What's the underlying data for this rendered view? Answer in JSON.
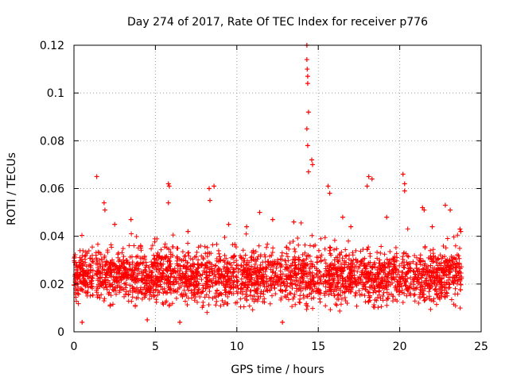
{
  "chart_data": {
    "type": "scatter",
    "title": "Day 274 of 2017, Rate Of TEC Index for receiver p776",
    "xlabel": "GPS time / hours",
    "ylabel": "ROTI / TECUs",
    "xlim": [
      0,
      25
    ],
    "ylim": [
      0,
      0.12
    ],
    "x_ticks": [
      0,
      5,
      10,
      15,
      20,
      25
    ],
    "x_tick_labels": [
      "0",
      "5",
      "10",
      "15",
      "20",
      "25"
    ],
    "y_ticks": [
      0,
      0.02,
      0.04,
      0.06,
      0.08,
      0.1,
      0.12
    ],
    "y_tick_labels": [
      "0",
      "0.02",
      "0.04",
      "0.06",
      "0.08",
      "0.1",
      "0.12"
    ],
    "grid": true,
    "marker": "+",
    "series": [
      {
        "name": "ROTI",
        "color": "#ff0000",
        "x_range": [
          0,
          23.8
        ],
        "typical_band": [
          0.007,
          0.035
        ],
        "x": [
          1.4,
          1.85,
          1.9,
          5.8,
          5.85,
          5.8,
          8.3,
          8.35,
          8.6,
          14.3,
          14.3,
          14.32,
          14.35,
          14.35,
          14.4,
          14.3,
          14.35,
          14.4,
          14.6,
          14.65,
          15.6,
          15.7,
          18.1,
          18.3,
          18.0,
          20.2,
          20.3,
          20.3,
          21.4,
          21.5,
          22.8,
          23.1,
          23.7,
          23.75,
          3.5,
          7.0,
          11.4,
          12.2,
          9.5,
          16.5,
          2.5,
          10.6,
          13.5,
          17.0,
          19.2,
          22.0,
          0.5,
          4.5,
          6.5,
          12.8
        ],
        "y": [
          0.065,
          0.054,
          0.051,
          0.062,
          0.061,
          0.054,
          0.06,
          0.055,
          0.061,
          0.12,
          0.114,
          0.11,
          0.107,
          0.104,
          0.092,
          0.085,
          0.078,
          0.067,
          0.072,
          0.07,
          0.061,
          0.058,
          0.065,
          0.064,
          0.061,
          0.066,
          0.062,
          0.059,
          0.052,
          0.051,
          0.053,
          0.051,
          0.043,
          0.042,
          0.047,
          0.042,
          0.05,
          0.047,
          0.045,
          0.048,
          0.045,
          0.044,
          0.046,
          0.044,
          0.048,
          0.044,
          0.004,
          0.005,
          0.004,
          0.004
        ]
      }
    ]
  }
}
